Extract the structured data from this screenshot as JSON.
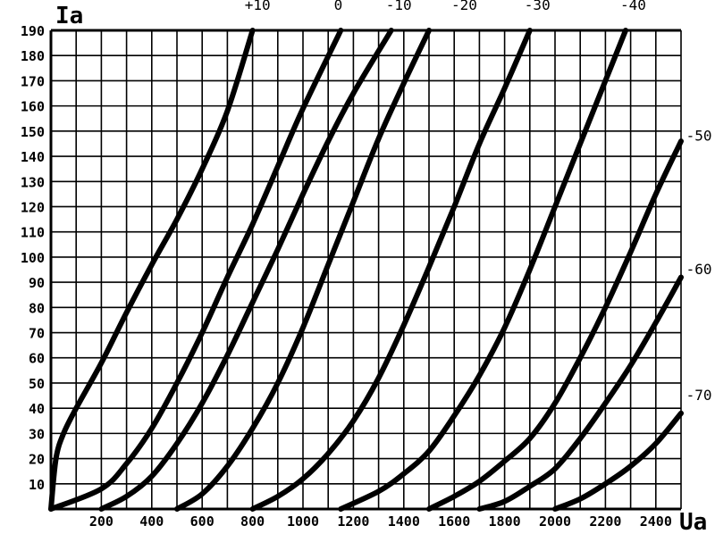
{
  "chart_data": {
    "type": "line",
    "title": "",
    "xlabel": "Ua",
    "ylabel": "Ia",
    "xlim": [
      0,
      2500
    ],
    "ylim": [
      0,
      190
    ],
    "grid": true,
    "legend": "none",
    "colors": {
      "line": "#000000",
      "grid": "#000000",
      "background": "#ffffff"
    },
    "x_ticks": [
      "200",
      "400",
      "600",
      "800",
      "1000",
      "1200",
      "1400",
      "1600",
      "1800",
      "2000",
      "2200",
      "2400"
    ],
    "x_tick_values": [
      200,
      400,
      600,
      800,
      1000,
      1200,
      1400,
      1600,
      1800,
      2000,
      2200,
      2400
    ],
    "y_ticks": [
      "10",
      "20",
      "30",
      "40",
      "50",
      "60",
      "70",
      "80",
      "90",
      "100",
      "110",
      "120",
      "130",
      "140",
      "150",
      "160",
      "170",
      "180",
      "190"
    ],
    "y_tick_values": [
      10,
      20,
      30,
      40,
      50,
      60,
      70,
      80,
      90,
      100,
      110,
      120,
      130,
      140,
      150,
      160,
      170,
      180,
      190
    ],
    "series": [
      {
        "label": "+10",
        "points": [
          [
            0,
            0
          ],
          [
            20,
            20
          ],
          [
            50,
            30
          ],
          [
            100,
            40
          ],
          [
            200,
            58
          ],
          [
            300,
            78
          ],
          [
            400,
            97
          ],
          [
            500,
            115
          ],
          [
            600,
            135
          ],
          [
            700,
            158
          ],
          [
            800,
            190
          ]
        ]
      },
      {
        "label": "0",
        "points": [
          [
            0,
            0
          ],
          [
            200,
            8
          ],
          [
            300,
            18
          ],
          [
            400,
            32
          ],
          [
            500,
            50
          ],
          [
            600,
            70
          ],
          [
            700,
            92
          ],
          [
            800,
            113
          ],
          [
            900,
            136
          ],
          [
            1000,
            159
          ],
          [
            1150,
            190
          ]
        ]
      },
      {
        "label": "-10",
        "points": [
          [
            200,
            0
          ],
          [
            300,
            5
          ],
          [
            400,
            13
          ],
          [
            500,
            26
          ],
          [
            600,
            42
          ],
          [
            700,
            61
          ],
          [
            800,
            82
          ],
          [
            900,
            103
          ],
          [
            1000,
            125
          ],
          [
            1100,
            146
          ],
          [
            1200,
            165
          ],
          [
            1350,
            190
          ]
        ]
      },
      {
        "label": "-20",
        "points": [
          [
            500,
            0
          ],
          [
            600,
            6
          ],
          [
            700,
            17
          ],
          [
            800,
            32
          ],
          [
            900,
            50
          ],
          [
            1000,
            72
          ],
          [
            1100,
            97
          ],
          [
            1200,
            122
          ],
          [
            1300,
            147
          ],
          [
            1400,
            169
          ],
          [
            1500,
            190
          ]
        ]
      },
      {
        "label": "-30",
        "points": [
          [
            800,
            0
          ],
          [
            900,
            5
          ],
          [
            1000,
            12
          ],
          [
            1100,
            22
          ],
          [
            1200,
            35
          ],
          [
            1300,
            52
          ],
          [
            1400,
            73
          ],
          [
            1500,
            96
          ],
          [
            1600,
            120
          ],
          [
            1700,
            145
          ],
          [
            1800,
            167
          ],
          [
            1900,
            190
          ]
        ]
      },
      {
        "label": "-40",
        "points": [
          [
            1150,
            0
          ],
          [
            1300,
            7
          ],
          [
            1400,
            14
          ],
          [
            1500,
            23
          ],
          [
            1600,
            37
          ],
          [
            1700,
            53
          ],
          [
            1800,
            72
          ],
          [
            1900,
            95
          ],
          [
            2000,
            120
          ],
          [
            2100,
            145
          ],
          [
            2200,
            170
          ],
          [
            2280,
            190
          ]
        ]
      },
      {
        "label": "-50",
        "points": [
          [
            1500,
            0
          ],
          [
            1600,
            5
          ],
          [
            1700,
            11
          ],
          [
            1800,
            19
          ],
          [
            1900,
            28
          ],
          [
            2000,
            42
          ],
          [
            2100,
            60
          ],
          [
            2200,
            80
          ],
          [
            2300,
            102
          ],
          [
            2400,
            125
          ],
          [
            2500,
            146
          ]
        ]
      },
      {
        "label": "-60",
        "points": [
          [
            1700,
            0
          ],
          [
            1800,
            3
          ],
          [
            1900,
            9
          ],
          [
            2000,
            16
          ],
          [
            2100,
            28
          ],
          [
            2200,
            42
          ],
          [
            2300,
            57
          ],
          [
            2400,
            74
          ],
          [
            2500,
            92
          ]
        ]
      },
      {
        "label": "-70",
        "points": [
          [
            2000,
            0
          ],
          [
            2100,
            4
          ],
          [
            2200,
            10
          ],
          [
            2300,
            17
          ],
          [
            2400,
            26
          ],
          [
            2500,
            38
          ]
        ]
      }
    ],
    "curve_labels": [
      {
        "text": "+10",
        "ux": 820,
        "uy": 200
      },
      {
        "text": "0",
        "ux": 1140,
        "uy": 200
      },
      {
        "text": "-10",
        "ux": 1380,
        "uy": 200
      },
      {
        "text": "-20",
        "ux": 1640,
        "uy": 200
      },
      {
        "text": "-30",
        "ux": 1930,
        "uy": 200
      },
      {
        "text": "-40",
        "ux": 2310,
        "uy": 200
      },
      {
        "text": "-50",
        "ux": 2520,
        "uy": 148
      },
      {
        "text": "-60",
        "ux": 2520,
        "uy": 95
      },
      {
        "text": "-70",
        "ux": 2520,
        "uy": 45
      }
    ]
  }
}
